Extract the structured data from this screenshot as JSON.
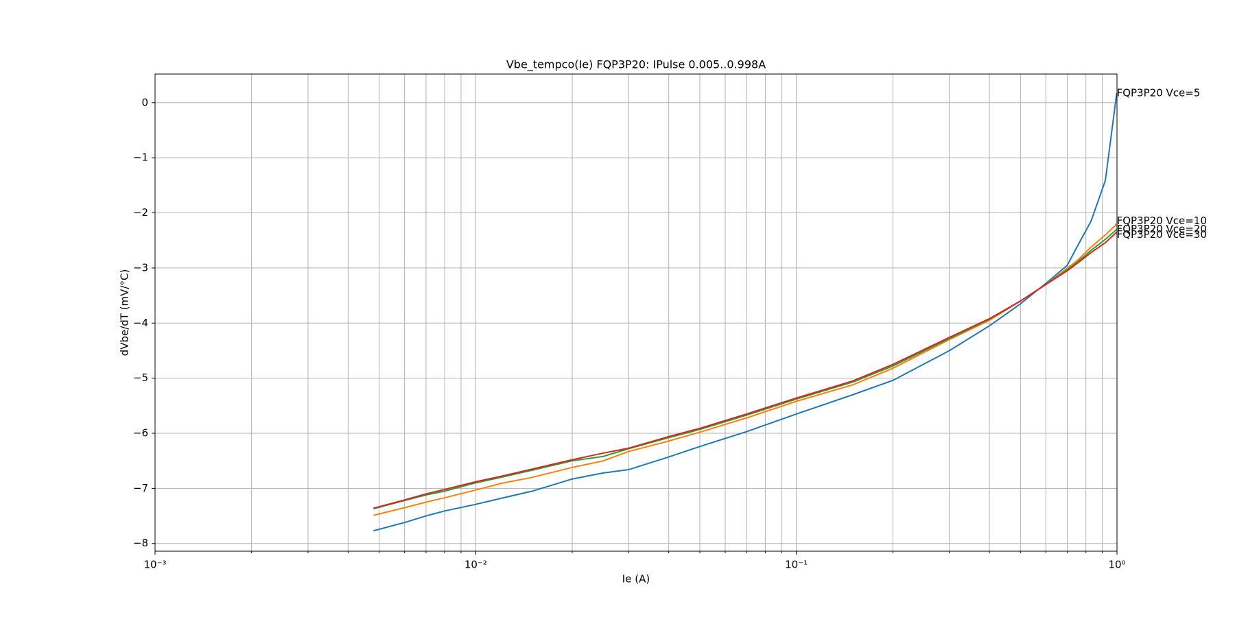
{
  "chart_data": {
    "type": "line",
    "title": "Vbe_tempco(Ie) FQP3P20: IPulse 0.005..0.998A",
    "x_label": "Ie (A)",
    "y_label": "dVbe/dT (mV/°C)",
    "x_scale": "log",
    "grid": true,
    "xlim": [
      0.001,
      1
    ],
    "ylim": [
      -8.14,
      0.52
    ],
    "xticks": [
      {
        "value": 0.001,
        "label": "10⁻³"
      },
      {
        "value": 0.01,
        "label": "10⁻²"
      },
      {
        "value": 0.1,
        "label": "10⁻¹"
      },
      {
        "value": 1,
        "label": "10⁰"
      }
    ],
    "xminorticks": [
      0.002,
      0.003,
      0.004,
      0.005,
      0.006,
      0.007,
      0.008,
      0.009,
      0.02,
      0.03,
      0.04,
      0.05,
      0.06,
      0.07,
      0.08,
      0.09,
      0.2,
      0.3,
      0.4,
      0.5,
      0.6,
      0.7,
      0.8,
      0.9
    ],
    "yticks": [
      {
        "value": -8,
        "label": "−8"
      },
      {
        "value": -7,
        "label": "−7"
      },
      {
        "value": -6,
        "label": "−6"
      },
      {
        "value": -5,
        "label": "−5"
      },
      {
        "value": -4,
        "label": "−4"
      },
      {
        "value": -3,
        "label": "−3"
      },
      {
        "value": -2,
        "label": "−2"
      },
      {
        "value": -1,
        "label": "−1"
      },
      0
    ],
    "x": [
      0.0048,
      0.006,
      0.007,
      0.008,
      0.01,
      0.012,
      0.015,
      0.02,
      0.025,
      0.03,
      0.04,
      0.05,
      0.07,
      0.1,
      0.15,
      0.2,
      0.3,
      0.4,
      0.5,
      0.6,
      0.7,
      0.75,
      0.83,
      0.92,
      0.998
    ],
    "series": [
      {
        "name": "FQP3P20 Vce=5",
        "color": "#1f77b4",
        "values": [
          -7.77,
          -7.62,
          -7.5,
          -7.41,
          -7.29,
          -7.18,
          -7.05,
          -6.83,
          -6.72,
          -6.66,
          -6.43,
          -6.24,
          -5.97,
          -5.65,
          -5.3,
          -5.04,
          -4.5,
          -4.05,
          -3.65,
          -3.28,
          -2.95,
          -2.62,
          -2.15,
          -1.41,
          0.17
        ]
      },
      {
        "name": "FQP3P20 Vce=10",
        "color": "#ff7f0e",
        "values": [
          -7.49,
          -7.35,
          -7.25,
          -7.17,
          -7.03,
          -6.91,
          -6.8,
          -6.62,
          -6.5,
          -6.33,
          -6.14,
          -5.98,
          -5.72,
          -5.42,
          -5.12,
          -4.82,
          -4.3,
          -3.95,
          -3.6,
          -3.3,
          -3.0,
          -2.87,
          -2.62,
          -2.4,
          -2.2
        ]
      },
      {
        "name": "FQP3P20 Vce=20",
        "color": "#2ca02c",
        "values": [
          -7.37,
          -7.22,
          -7.12,
          -7.05,
          -6.9,
          -6.8,
          -6.67,
          -6.5,
          -6.42,
          -6.28,
          -6.08,
          -5.93,
          -5.67,
          -5.38,
          -5.07,
          -4.78,
          -4.28,
          -3.93,
          -3.6,
          -3.3,
          -3.03,
          -2.9,
          -2.68,
          -2.48,
          -2.3
        ]
      },
      {
        "name": "FQP3P20 Vce=30",
        "color": "#d62728",
        "values": [
          -7.36,
          -7.21,
          -7.1,
          -7.02,
          -6.88,
          -6.78,
          -6.65,
          -6.48,
          -6.36,
          -6.27,
          -6.06,
          -5.91,
          -5.65,
          -5.36,
          -5.05,
          -4.75,
          -4.26,
          -3.92,
          -3.6,
          -3.3,
          -3.05,
          -2.92,
          -2.72,
          -2.54,
          -2.35
        ]
      }
    ]
  }
}
